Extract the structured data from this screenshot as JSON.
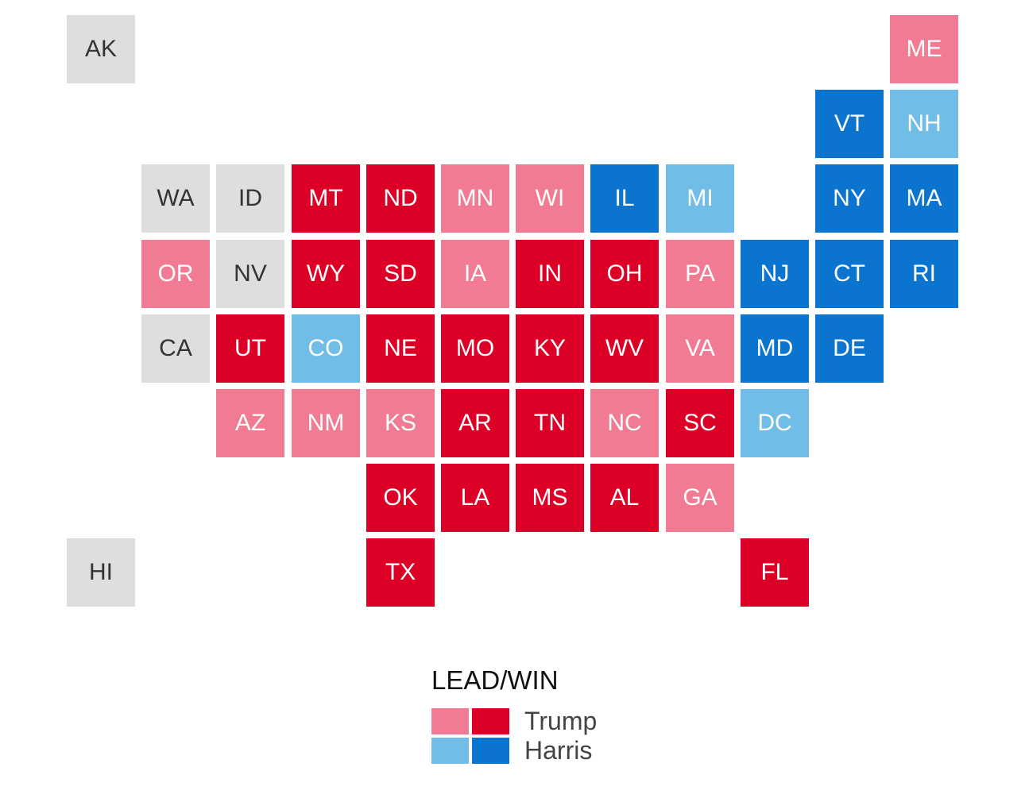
{
  "colors": {
    "trump_win": "#dc0026",
    "trump_lead": "#f07b92",
    "harris_win": "#0a74cf",
    "harris_lead": "#70bde8",
    "no_result": "#dedede"
  },
  "states": [
    {
      "abbr": "AK",
      "status": "no_result"
    },
    {
      "abbr": "ME",
      "status": "trump_lead"
    },
    {
      "abbr": "VT",
      "status": "harris_win"
    },
    {
      "abbr": "NH",
      "status": "harris_lead"
    },
    {
      "abbr": "WA",
      "status": "no_result"
    },
    {
      "abbr": "ID",
      "status": "no_result"
    },
    {
      "abbr": "MT",
      "status": "trump_win"
    },
    {
      "abbr": "ND",
      "status": "trump_win"
    },
    {
      "abbr": "MN",
      "status": "trump_lead"
    },
    {
      "abbr": "WI",
      "status": "trump_lead"
    },
    {
      "abbr": "IL",
      "status": "harris_win"
    },
    {
      "abbr": "MI",
      "status": "harris_lead"
    },
    {
      "abbr": "NY",
      "status": "harris_win"
    },
    {
      "abbr": "MA",
      "status": "harris_win"
    },
    {
      "abbr": "OR",
      "status": "trump_lead"
    },
    {
      "abbr": "NV",
      "status": "no_result"
    },
    {
      "abbr": "WY",
      "status": "trump_win"
    },
    {
      "abbr": "SD",
      "status": "trump_win"
    },
    {
      "abbr": "IA",
      "status": "trump_lead"
    },
    {
      "abbr": "IN",
      "status": "trump_win"
    },
    {
      "abbr": "OH",
      "status": "trump_win"
    },
    {
      "abbr": "PA",
      "status": "trump_lead"
    },
    {
      "abbr": "NJ",
      "status": "harris_win"
    },
    {
      "abbr": "CT",
      "status": "harris_win"
    },
    {
      "abbr": "RI",
      "status": "harris_win"
    },
    {
      "abbr": "CA",
      "status": "no_result"
    },
    {
      "abbr": "UT",
      "status": "trump_win"
    },
    {
      "abbr": "CO",
      "status": "harris_lead"
    },
    {
      "abbr": "NE",
      "status": "trump_win"
    },
    {
      "abbr": "MO",
      "status": "trump_win"
    },
    {
      "abbr": "KY",
      "status": "trump_win"
    },
    {
      "abbr": "WV",
      "status": "trump_win"
    },
    {
      "abbr": "VA",
      "status": "trump_lead"
    },
    {
      "abbr": "MD",
      "status": "harris_win"
    },
    {
      "abbr": "DE",
      "status": "harris_win"
    },
    {
      "abbr": "AZ",
      "status": "trump_lead"
    },
    {
      "abbr": "NM",
      "status": "trump_lead"
    },
    {
      "abbr": "KS",
      "status": "trump_lead"
    },
    {
      "abbr": "AR",
      "status": "trump_win"
    },
    {
      "abbr": "TN",
      "status": "trump_win"
    },
    {
      "abbr": "NC",
      "status": "trump_lead"
    },
    {
      "abbr": "SC",
      "status": "trump_win"
    },
    {
      "abbr": "DC",
      "status": "harris_lead"
    },
    {
      "abbr": "OK",
      "status": "trump_win"
    },
    {
      "abbr": "LA",
      "status": "trump_win"
    },
    {
      "abbr": "MS",
      "status": "trump_win"
    },
    {
      "abbr": "AL",
      "status": "trump_win"
    },
    {
      "abbr": "GA",
      "status": "trump_lead"
    },
    {
      "abbr": "HI",
      "status": "no_result"
    },
    {
      "abbr": "TX",
      "status": "trump_win"
    },
    {
      "abbr": "FL",
      "status": "trump_win"
    }
  ],
  "legend": {
    "title": "LEAD/WIN",
    "rows": [
      {
        "label": "Trump",
        "lead_status": "trump_lead",
        "win_status": "trump_win"
      },
      {
        "label": "Harris",
        "lead_status": "harris_lead",
        "win_status": "harris_win"
      }
    ]
  }
}
